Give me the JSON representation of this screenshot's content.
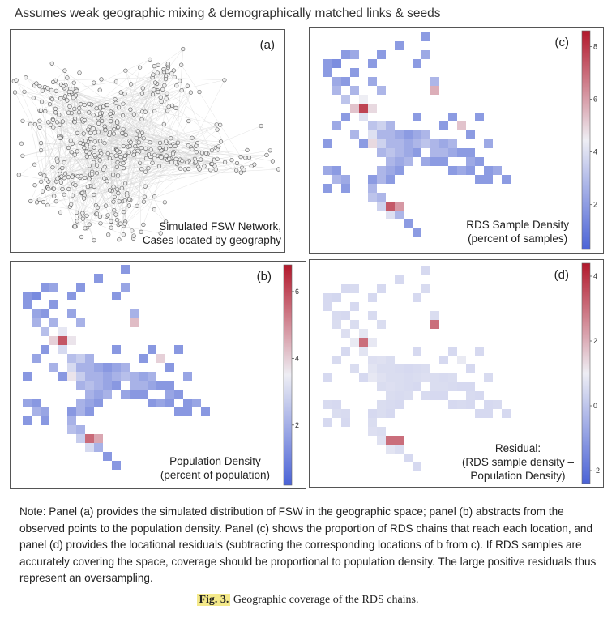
{
  "figure_title": "Assumes weak geographic mixing & demographically matched links & seeds",
  "panels": {
    "a": {
      "label": "(a)",
      "text_line1": "Simulated FSW Network,",
      "text_line2": "Cases located by geography"
    },
    "b": {
      "label": "(b)",
      "text_line1": "Population Density",
      "text_line2": "(percent of population)",
      "colorbar": {
        "ticks": [
          "6",
          "4",
          "2"
        ],
        "min": 0.2,
        "max": 6.8
      }
    },
    "c": {
      "label": "(c)",
      "text_line1": "RDS Sample Density",
      "text_line2": "(percent of samples)",
      "colorbar": {
        "ticks": [
          "8",
          "6",
          "4",
          "2"
        ],
        "min": 0.3,
        "max": 8.6
      }
    },
    "d": {
      "label": "(d)",
      "text_line1": "Residual:",
      "text_line2": "(RDS sample density –",
      "text_line3": "Population Density)",
      "colorbar": {
        "ticks": [
          "4",
          "2",
          "0",
          "-2"
        ],
        "min": -2.4,
        "max": 4.4
      }
    }
  },
  "colors": {
    "low": "#4b63d6",
    "mid": "#eeeef4",
    "high": "#b2182b"
  },
  "note": "Note: Panel (a) provides the simulated distribution of FSW in the geographic space; panel (b) abstracts from the observed points to the population density. Panel (c) shows the proportion of RDS chains that reach each location, and panel (d) provides the locational residuals (subtracting the corresponding locations of b from c).  If RDS samples are accurately covering the space, coverage should be proportional to population density. The large positive residuals thus represent an oversampling.",
  "caption": {
    "label": "Fig. 3.",
    "text": " Geographic coverage of the RDS chains."
  }
}
